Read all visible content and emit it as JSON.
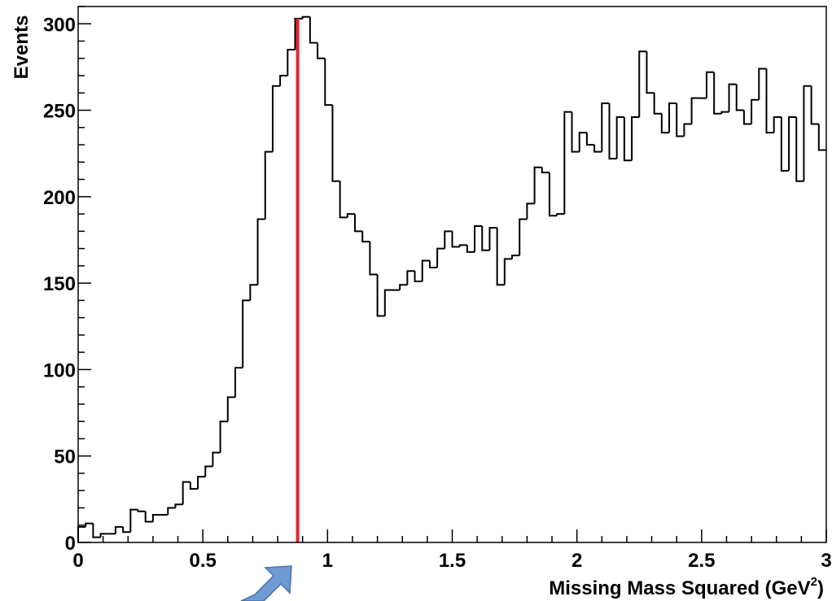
{
  "chart_data": {
    "type": "histogram",
    "xlabel": "Missing Mass Squared (GeV",
    "xlabel_sup": "2",
    "xlabel_close": ")",
    "ylabel": "Events",
    "xlim": [
      0,
      3
    ],
    "ylim": [
      0,
      310
    ],
    "bin_width": 0.03,
    "x_ticks": [
      0,
      0.5,
      1,
      1.5,
      2,
      2.5,
      3
    ],
    "x_tick_labels": [
      "0",
      "0.5",
      "1",
      "1.5",
      "2",
      "2.5",
      "3"
    ],
    "y_ticks": [
      0,
      50,
      100,
      150,
      200,
      250,
      300
    ],
    "y_tick_labels": [
      "0",
      "50",
      "100",
      "150",
      "200",
      "250",
      "300"
    ],
    "grid": false,
    "values": [
      9,
      11,
      3,
      5,
      5,
      9,
      6,
      19,
      18,
      12,
      16,
      16,
      20,
      22,
      35,
      31,
      38,
      44,
      52,
      70,
      84,
      101,
      140,
      149,
      187,
      226,
      264,
      270,
      285,
      303,
      304,
      289,
      280,
      253,
      209,
      188,
      190,
      180,
      174,
      155,
      131,
      146,
      146,
      149,
      157,
      151,
      163,
      159,
      170,
      180,
      171,
      172,
      168,
      183,
      169,
      182,
      149,
      164,
      166,
      187,
      196,
      217,
      214,
      189,
      190,
      249,
      226,
      237,
      230,
      226,
      254,
      222,
      246,
      221,
      246,
      284,
      260,
      248,
      237,
      254,
      235,
      242,
      257,
      257,
      272,
      248,
      249,
      265,
      250,
      242,
      256,
      274,
      237,
      246,
      215,
      246,
      209,
      264,
      242,
      227
    ],
    "vertical_line": {
      "x": 0.88,
      "color": "#e8232a"
    },
    "line_color": "#000000"
  }
}
